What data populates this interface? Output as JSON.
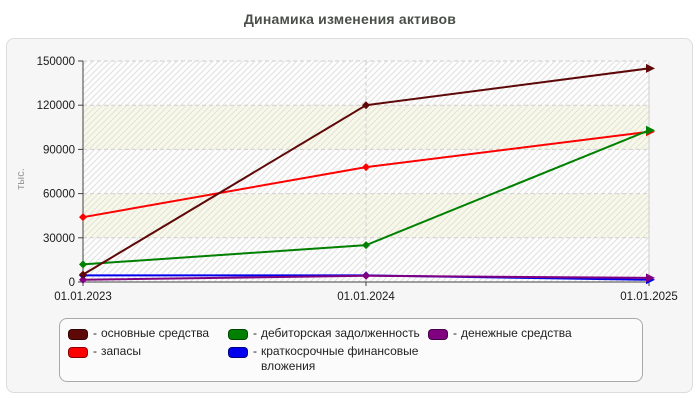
{
  "title": "Динамика изменения активов",
  "legend": {
    "separator": "-",
    "items": [
      "основные средства",
      "запасы",
      "дебиторская задолженность",
      "краткосрочные финансовые вложения",
      "денежные средства"
    ]
  },
  "chart_data": {
    "type": "line",
    "title": "Динамика изменения активов",
    "xlabel": "",
    "ylabel": "тыс.",
    "categories": [
      "01.01.2023",
      "01.01.2024",
      "01.01.2025"
    ],
    "series": [
      {
        "name": "основные средства",
        "color": "#5e0808",
        "values": [
          5000,
          120000,
          145000
        ]
      },
      {
        "name": "запасы",
        "color": "#ff0000",
        "values": [
          44000,
          78000,
          102000
        ]
      },
      {
        "name": "дебиторская задолженность",
        "color": "#008000",
        "values": [
          12000,
          25000,
          103000
        ]
      },
      {
        "name": "краткосрочные финансовые вложения",
        "color": "#0000ee",
        "values": [
          4500,
          4500,
          1500
        ]
      },
      {
        "name": "денежные средства",
        "color": "#800080",
        "values": [
          1500,
          4200,
          2800
        ]
      }
    ],
    "ylim": [
      0,
      150000
    ],
    "yticks": [
      0,
      30000,
      60000,
      90000,
      120000,
      150000
    ],
    "grid": true,
    "legend_position": "bottom",
    "band_colors": [
      "#fdfdfd",
      "#f8f8e7"
    ],
    "grid_color": "#cfcfcf",
    "axis_color": "#444444"
  }
}
